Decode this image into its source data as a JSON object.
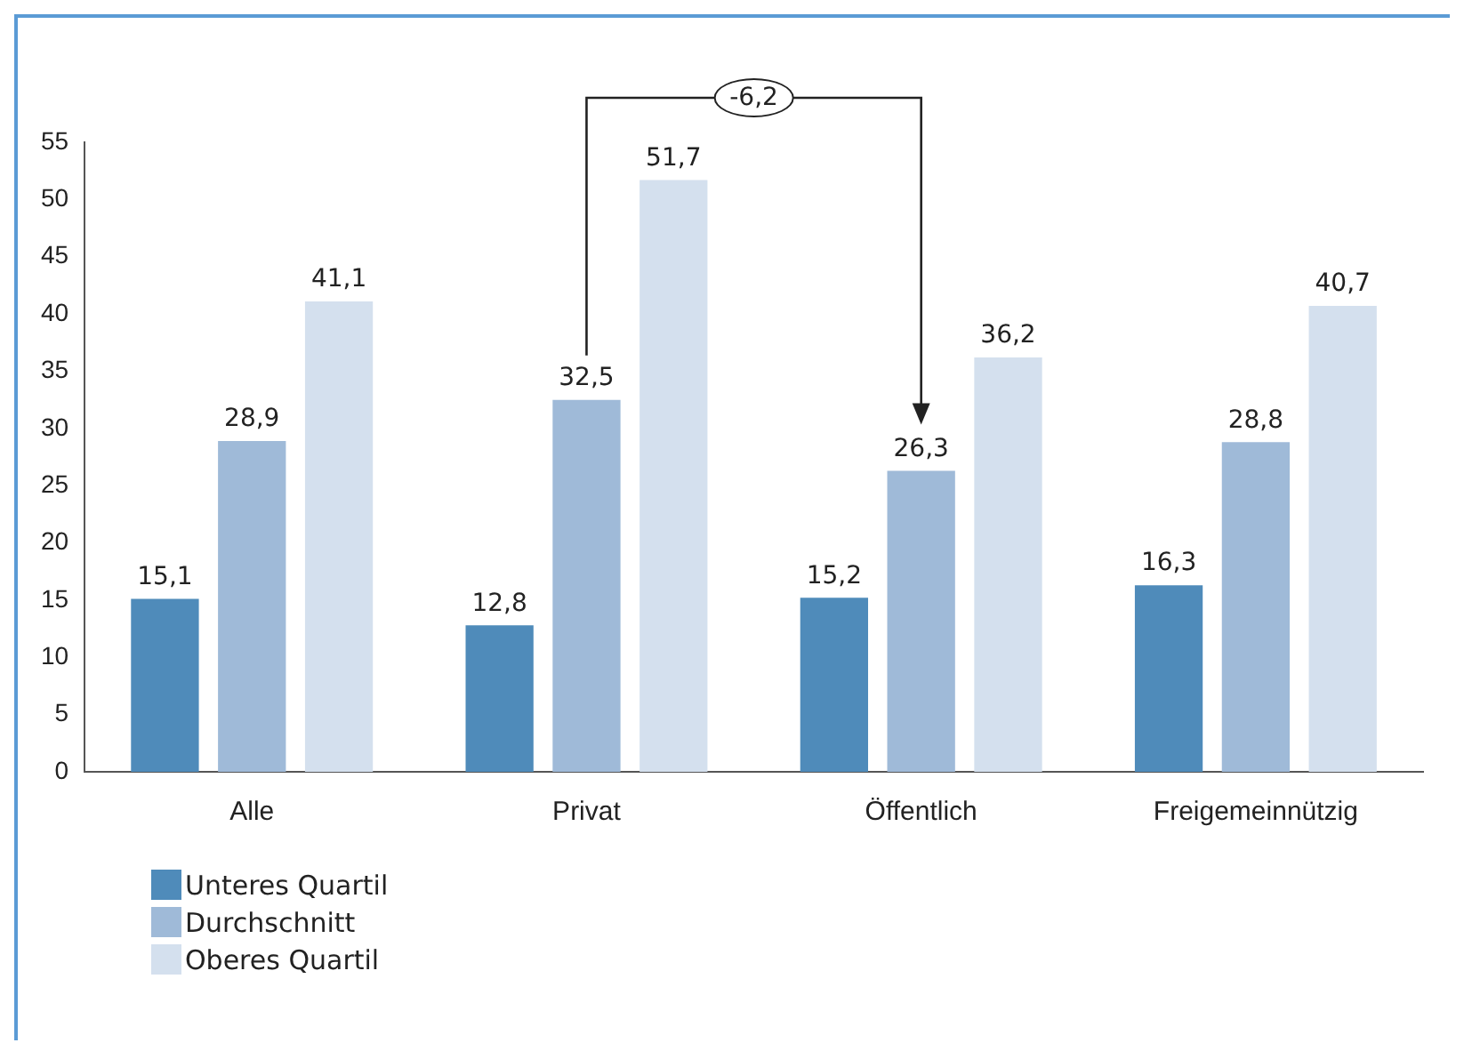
{
  "chart_data": {
    "type": "bar",
    "categories": [
      "Alle",
      "Privat",
      "Öffentlich",
      "Freigemeinnützig"
    ],
    "series": [
      {
        "name": "Unteres Quartil",
        "color": "#4f8bba",
        "values": [
          15.1,
          12.8,
          15.2,
          16.3
        ],
        "value_labels": [
          "15,1",
          "12,8",
          "15,2",
          "16,3"
        ]
      },
      {
        "name": "Durchschnitt",
        "color": "#9fbad8",
        "values": [
          28.9,
          32.5,
          26.3,
          28.8
        ],
        "value_labels": [
          "28,9",
          "32,5",
          "26,3",
          "28,8"
        ]
      },
      {
        "name": "Oberes Quartil",
        "color": "#d4e0ee",
        "values": [
          41.1,
          51.7,
          36.2,
          40.7
        ],
        "value_labels": [
          "41,1",
          "51,7",
          "36,2",
          "40,7"
        ]
      }
    ],
    "ylim": [
      0,
      55
    ],
    "yticks": [
      0,
      5,
      10,
      15,
      20,
      25,
      30,
      35,
      40,
      45,
      50,
      55
    ],
    "grid": false,
    "legend": "bottom left",
    "annotations": [
      "-6,2"
    ]
  }
}
